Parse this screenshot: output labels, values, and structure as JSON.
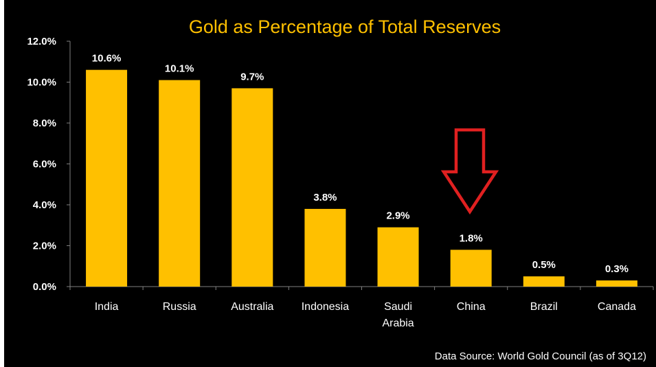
{
  "chart_data": {
    "type": "bar",
    "title": "Gold as Percentage of Total Reserves",
    "categories": [
      [
        "India"
      ],
      [
        "Russia"
      ],
      [
        "Australia"
      ],
      [
        "Indonesia"
      ],
      [
        "Saudi",
        "Arabia"
      ],
      [
        "China"
      ],
      [
        "Brazil"
      ],
      [
        "Canada"
      ]
    ],
    "values": [
      10.6,
      10.1,
      9.7,
      3.8,
      2.9,
      1.8,
      0.5,
      0.3
    ],
    "data_labels": [
      "10.6%",
      "10.1%",
      "9.7%",
      "3.8%",
      "2.9%",
      "1.8%",
      "0.5%",
      "0.3%"
    ],
    "y_ticks": [
      0,
      2,
      4,
      6,
      8,
      10,
      12
    ],
    "y_tick_labels": [
      "0.0%",
      "2.0%",
      "4.0%",
      "6.0%",
      "8.0%",
      "10.0%",
      "12.0%"
    ],
    "ylim": [
      0,
      12
    ],
    "xlabel": "",
    "ylabel": "",
    "grid": false,
    "legend": "none",
    "highlight_category": "China",
    "annotation_icon": "down-arrow-icon",
    "source_note": "Data Source: World Gold Council (as of 3Q12)"
  },
  "colors": {
    "background": "#000000",
    "bar": "#FFC000",
    "title": "#FFC000",
    "text": "#FFFFFF",
    "axis": "#808080",
    "arrow": "#E02020"
  }
}
